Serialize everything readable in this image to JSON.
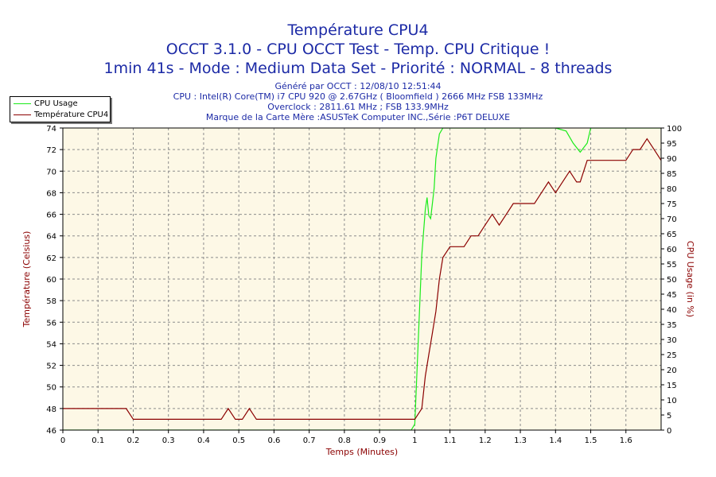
{
  "titles": {
    "line1": "Température CPU4",
    "line2": "OCCT 3.1.0 - CPU OCCT Test - Temp. CPU Critique !",
    "line3": "1min 41s - Mode : Medium Data Set - Priorité : NORMAL - 8 threads"
  },
  "info": {
    "line1": "Généré par OCCT : 12/08/10 12:51:44",
    "line2": "CPU : Intel(R) Core(TM) i7 CPU 920 @ 2.67GHz ( Bloomfield ) 2666 MHz FSB 133MHz",
    "line3": "Overclock : 2811.61 MHz ; FSB 133.9MHz",
    "line4": "Marque de la Carte Mère :ASUSTeK Computer INC.,Série :P6T DELUXE"
  },
  "colors": {
    "background": "#ffffff",
    "plot_bg": "#fdf8e6",
    "grid": "#8c8c8c",
    "cpu_usage": "#1aeb1a",
    "temperature": "#8b0000",
    "title": "#1c2aa6",
    "axis_label": "#8b0000"
  },
  "chart_data": {
    "type": "line",
    "xlabel": "Temps (Minutes)",
    "ylabel_left": "Température (Celsius)",
    "ylabel_right": "CPU Usage (in %)",
    "xlim": [
      0,
      1.7
    ],
    "ylim_left": [
      46,
      74
    ],
    "ylim_right": [
      0,
      100
    ],
    "x_ticks": [
      "0",
      "0.1",
      "0.2",
      "0.3",
      "0.4",
      "0.5",
      "0.6",
      "0.7",
      "0.8",
      "0.9",
      "1",
      "1.1",
      "1.2",
      "1.3",
      "1.4",
      "1.5",
      "1.6"
    ],
    "y_left_ticks": [
      "46",
      "48",
      "50",
      "52",
      "54",
      "56",
      "58",
      "60",
      "62",
      "64",
      "66",
      "68",
      "70",
      "72",
      "74"
    ],
    "y_right_ticks": [
      "0",
      "5",
      "10",
      "15",
      "20",
      "25",
      "30",
      "35",
      "40",
      "45",
      "50",
      "55",
      "60",
      "65",
      "70",
      "75",
      "80",
      "85",
      "90",
      "95",
      "100"
    ],
    "grid": true,
    "legend_position": "top-left",
    "series": [
      {
        "name": "CPU Usage",
        "axis": "right",
        "x": [
          0,
          0.99,
          1.0,
          1.01,
          1.02,
          1.03,
          1.035,
          1.04,
          1.045,
          1.05,
          1.055,
          1.06,
          1.07,
          1.08,
          1.1,
          1.2,
          1.3,
          1.4,
          1.43,
          1.45,
          1.47,
          1.49,
          1.5,
          1.52,
          1.55,
          1.6,
          1.7
        ],
        "values": [
          0,
          0,
          2,
          30,
          58,
          73,
          77,
          71,
          70,
          75,
          80,
          90,
          98,
          100,
          100,
          100,
          100,
          100,
          99,
          95,
          92,
          95,
          100,
          100,
          100,
          100,
          100
        ]
      },
      {
        "name": "Température CPU4",
        "axis": "left",
        "x": [
          0,
          0.17,
          0.18,
          0.2,
          0.3,
          0.45,
          0.47,
          0.49,
          0.51,
          0.53,
          0.55,
          0.57,
          0.6,
          0.7,
          0.8,
          0.9,
          1.0,
          1.02,
          1.03,
          1.04,
          1.05,
          1.06,
          1.07,
          1.08,
          1.09,
          1.1,
          1.12,
          1.14,
          1.16,
          1.18,
          1.2,
          1.22,
          1.24,
          1.26,
          1.28,
          1.3,
          1.34,
          1.36,
          1.38,
          1.4,
          1.42,
          1.44,
          1.46,
          1.47,
          1.48,
          1.49,
          1.5,
          1.55,
          1.58,
          1.6,
          1.62,
          1.64,
          1.66,
          1.68,
          1.7
        ],
        "values": [
          48,
          48,
          48,
          47,
          47,
          47,
          48,
          47,
          47,
          48,
          47,
          47,
          47,
          47,
          47,
          47,
          47,
          48,
          51,
          53,
          55,
          57,
          60,
          62,
          62.5,
          63,
          63,
          63,
          64,
          64,
          65,
          66,
          65,
          66,
          67,
          67,
          67,
          68,
          69,
          68,
          69,
          70,
          69,
          69,
          70,
          71,
          71,
          71,
          71,
          71,
          72,
          72,
          73,
          72,
          71
        ]
      }
    ]
  }
}
